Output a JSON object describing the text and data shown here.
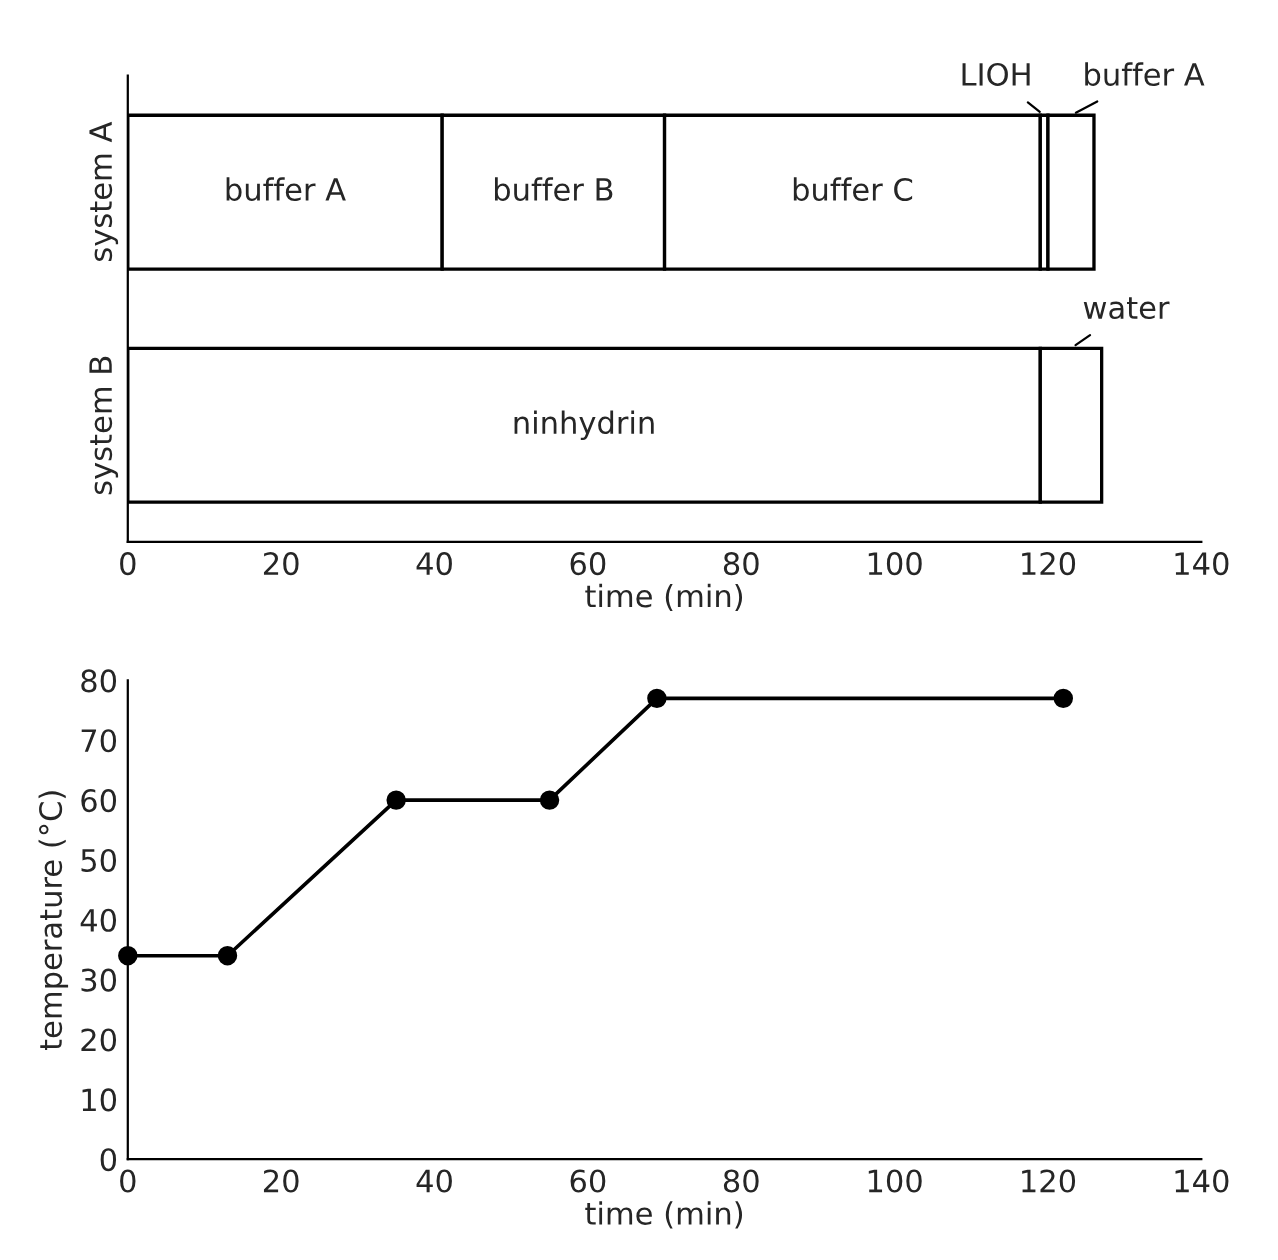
{
  "chart_data": [
    {
      "type": "bar",
      "orientation": "horizontal",
      "stacked": true,
      "categories": [
        "system A",
        "system B"
      ],
      "xlabel": "time (min)",
      "xlim": [
        0,
        140
      ],
      "xticks": [
        0,
        20,
        40,
        60,
        80,
        100,
        120,
        140
      ],
      "series": [
        {
          "name": "buffer A",
          "color": "#ffffff",
          "values": [
            41,
            null
          ]
        },
        {
          "name": "buffer B",
          "color": "#ffffff",
          "values": [
            29,
            null
          ]
        },
        {
          "name": "buffer C",
          "color": "#ffffff",
          "values": [
            49,
            null
          ]
        },
        {
          "name": "LIOH",
          "color": "#ffffff",
          "values": [
            1,
            null
          ]
        },
        {
          "name": "buffer A",
          "color": "#ffffff",
          "values": [
            6,
            null
          ]
        },
        {
          "name": "ninhydrin",
          "color": "#ffffff",
          "values": [
            null,
            119
          ]
        },
        {
          "name": "water",
          "color": "#ffffff",
          "values": [
            null,
            8
          ]
        }
      ]
    },
    {
      "type": "line",
      "xlabel": "time (min)",
      "ylabel": "temperature (°C)",
      "xlim": [
        0,
        140
      ],
      "xticks": [
        0,
        20,
        40,
        60,
        80,
        100,
        120,
        140
      ],
      "ylim": [
        0,
        80
      ],
      "yticks": [
        0,
        10,
        20,
        30,
        40,
        50,
        60,
        70,
        80
      ],
      "marker": "circle",
      "series": [
        {
          "color": "#000000",
          "x": [
            0,
            13,
            35,
            55,
            69,
            122
          ],
          "values": [
            34,
            34,
            60,
            60,
            77,
            77
          ]
        }
      ]
    }
  ]
}
